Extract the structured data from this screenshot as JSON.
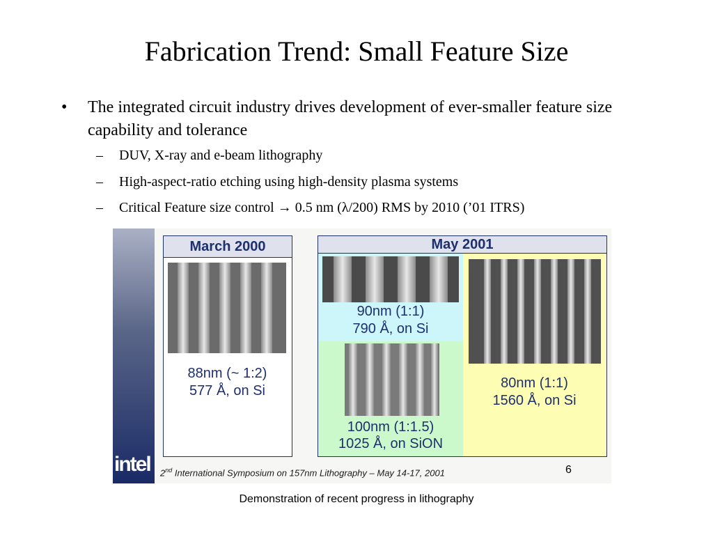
{
  "title": "Fabrication Trend: Small Feature Size",
  "bullet": {
    "marker": "•",
    "text": "The integrated circuit industry drives development of ever-smaller feature size capability and tolerance"
  },
  "subbullets": [
    {
      "dash": "–",
      "text": "DUV, X-ray and e-beam lithography"
    },
    {
      "dash": "–",
      "text": "High-aspect-ratio etching using high-density plasma systems"
    },
    {
      "dash": "–",
      "text": "Critical Feature size control → 0.5 nm (λ/200) RMS by 2010 (’01 ITRS)"
    }
  ],
  "figure": {
    "logo": "intel",
    "march_header": "March 2000",
    "march_caption_1": "88nm (~ 1:2)",
    "march_caption_2": "577 Å, on Si",
    "may_header": "May 2001",
    "p90_caption_1": "90nm (1:1)",
    "p90_caption_2": "790 Å, on Si",
    "p100_caption_1": "100nm (1:1.5)",
    "p100_caption_2": "1025 Å, on SiON",
    "p80_caption_1": "80nm (1:1)",
    "p80_caption_2": "1560 Å, on Si",
    "footer_pre": "2",
    "footer_sup": "nd",
    "footer_text": " International Symposium on 157nm Lithography – May 14-17, 2001",
    "page_number": "6"
  },
  "caption": "Demonstration of recent progress in lithography"
}
